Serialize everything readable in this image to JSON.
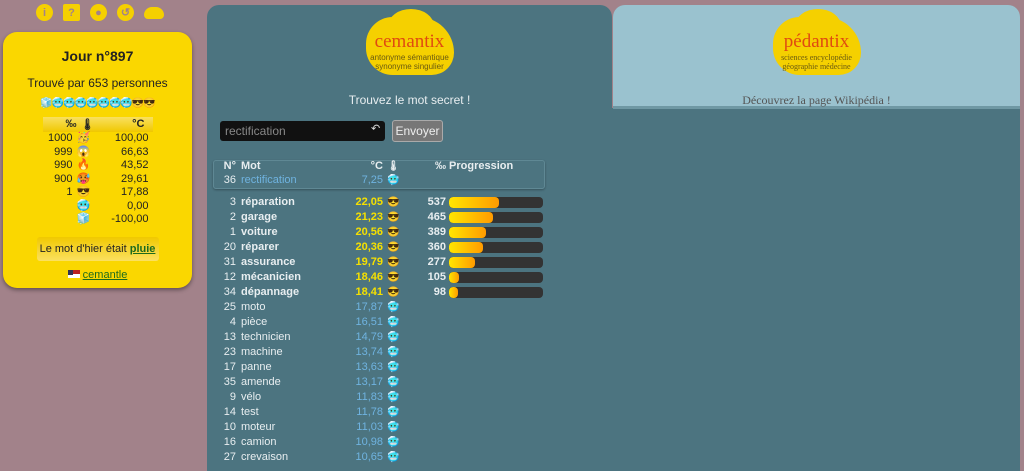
{
  "top_icons": [
    "info-icon",
    "help-icon",
    "palette-icon",
    "history-icon",
    "cloud-icon"
  ],
  "card": {
    "title": "Jour n°897",
    "found": "Trouvé par 653 personnes",
    "emoji_row": "🧊🥶🥶🥶🥶🥶🥶🥶😎😎",
    "legend_header": {
      "permille": "‰",
      "thermo": "🌡",
      "celsius": "°C"
    },
    "legend": [
      {
        "p": "1000",
        "e": "🥳",
        "c": "100,00"
      },
      {
        "p": "999",
        "e": "😱",
        "c": "66,63"
      },
      {
        "p": "990",
        "e": "🔥",
        "c": "43,52"
      },
      {
        "p": "900",
        "e": "🥵",
        "c": "29,61"
      },
      {
        "p": "1",
        "e": "😎",
        "c": "17,88"
      },
      {
        "p": "",
        "e": "🥶",
        "c": "0,00"
      },
      {
        "p": "",
        "e": "🧊",
        "c": "-100,00"
      }
    ],
    "yesterday_prefix": "Le mot d'hier était",
    "yesterday_word": "pluie",
    "cemantle": "cemantle"
  },
  "tabs": [
    {
      "logo": "cemantix",
      "logo_words": "antonyme sémantique synonyme singulier",
      "subtitle": "Trouvez le mot secret !"
    },
    {
      "logo": "pédantix",
      "logo_words": "sciences encyclopédie géographie médecine",
      "subtitle": "Découvrez la page Wikipédia !"
    }
  ],
  "search": {
    "value": "rectification",
    "send": "Envoyer"
  },
  "table": {
    "headers": {
      "num": "N°",
      "word": "Mot",
      "temp": "°C",
      "thermo": "🌡",
      "progress": "‰ Progression"
    },
    "current": {
      "n": "36",
      "w": "rectification",
      "t": "7,25",
      "e": "🥶"
    },
    "rows": [
      {
        "n": "3",
        "w": "réparation",
        "t": "22,05",
        "e": "😎",
        "p": 537
      },
      {
        "n": "2",
        "w": "garage",
        "t": "21,23",
        "e": "😎",
        "p": 465
      },
      {
        "n": "1",
        "w": "voiture",
        "t": "20,56",
        "e": "😎",
        "p": 389
      },
      {
        "n": "20",
        "w": "réparer",
        "t": "20,36",
        "e": "😎",
        "p": 360
      },
      {
        "n": "31",
        "w": "assurance",
        "t": "19,79",
        "e": "😎",
        "p": 277
      },
      {
        "n": "12",
        "w": "mécanicien",
        "t": "18,46",
        "e": "😎",
        "p": 105
      },
      {
        "n": "34",
        "w": "dépannage",
        "t": "18,41",
        "e": "😎",
        "p": 98
      },
      {
        "n": "25",
        "w": "moto",
        "t": "17,87",
        "e": "🥶"
      },
      {
        "n": "4",
        "w": "pièce",
        "t": "16,51",
        "e": "🥶"
      },
      {
        "n": "13",
        "w": "technicien",
        "t": "14,79",
        "e": "🥶"
      },
      {
        "n": "23",
        "w": "machine",
        "t": "13,74",
        "e": "🥶"
      },
      {
        "n": "17",
        "w": "panne",
        "t": "13,63",
        "e": "🥶"
      },
      {
        "n": "35",
        "w": "amende",
        "t": "13,17",
        "e": "🥶"
      },
      {
        "n": "9",
        "w": "vélo",
        "t": "11,83",
        "e": "🥶"
      },
      {
        "n": "14",
        "w": "test",
        "t": "11,78",
        "e": "🥶"
      },
      {
        "n": "10",
        "w": "moteur",
        "t": "11,03",
        "e": "🥶"
      },
      {
        "n": "16",
        "w": "camion",
        "t": "10,98",
        "e": "🥶"
      },
      {
        "n": "27",
        "w": "crevaison",
        "t": "10,65",
        "e": "🥶"
      }
    ]
  }
}
